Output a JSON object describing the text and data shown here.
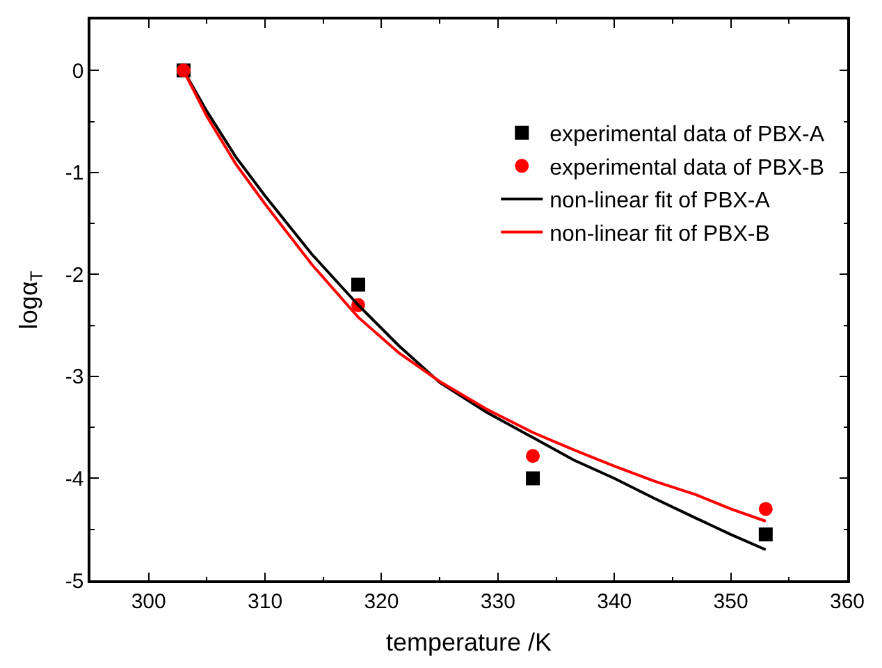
{
  "chart_data": {
    "type": "scatter",
    "xlabel": "temperature /K",
    "ylabel": "logα$_{T}$",
    "xlim": [
      295,
      360
    ],
    "xticks": [
      300,
      310,
      320,
      330,
      340,
      350,
      360
    ],
    "ylim": [
      -5,
      0.5
    ],
    "yticks": [
      -5,
      -4,
      -3,
      -2,
      -1,
      0
    ],
    "legend": "top right",
    "series": [
      {
        "name": "experimental data of PBX-A",
        "marker": "square",
        "color": "#000000",
        "x": [
          303,
          318,
          333,
          353
        ],
        "values": [
          0,
          -2.1,
          -4.0,
          -4.55
        ]
      },
      {
        "name": "experimental data of PBX-B",
        "marker": "circle",
        "color": "#ff0000",
        "x": [
          303,
          318,
          333,
          353
        ],
        "values": [
          0,
          -2.3,
          -3.78,
          -4.3
        ]
      },
      {
        "name": "non-linear fit of PBX-A",
        "type": "line",
        "line_style": "solid",
        "color": "#000000",
        "x": [
          303,
          305,
          307.5,
          310,
          314,
          318,
          321.5,
          325,
          329,
          333,
          336.5,
          340,
          343.5,
          347,
          350,
          353
        ],
        "values": [
          0,
          -0.4,
          -0.85,
          -1.23,
          -1.8,
          -2.3,
          -2.7,
          -3.06,
          -3.35,
          -3.6,
          -3.82,
          -4.0,
          -4.2,
          -4.39,
          -4.55,
          -4.7
        ]
      },
      {
        "name": "non-linear fit of PBX-B",
        "type": "line",
        "line_style": "solid",
        "color": "#ff0000",
        "x": [
          303,
          305,
          307.5,
          310,
          314,
          318,
          321.5,
          325,
          329,
          333,
          336.5,
          340,
          343.5,
          347,
          350,
          353
        ],
        "values": [
          0,
          -0.45,
          -0.92,
          -1.31,
          -1.9,
          -2.42,
          -2.77,
          -3.05,
          -3.32,
          -3.55,
          -3.72,
          -3.88,
          -4.03,
          -4.16,
          -4.3,
          -4.42
        ]
      }
    ]
  }
}
